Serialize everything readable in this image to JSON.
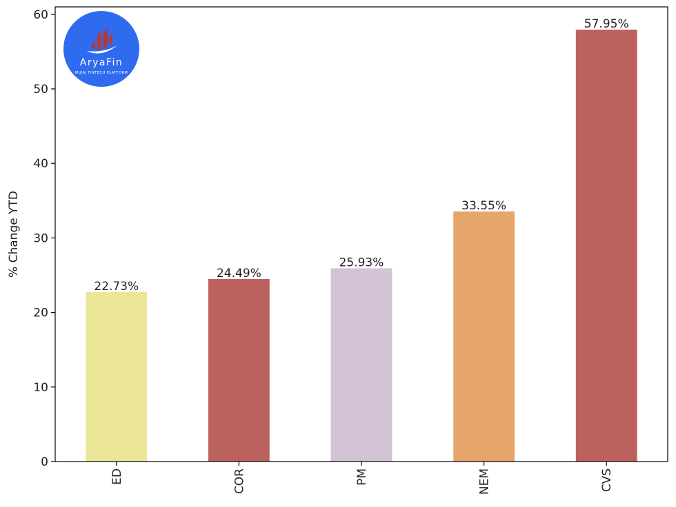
{
  "chart_data": {
    "type": "bar",
    "title": "",
    "xlabel": "",
    "ylabel": "% Change YTD",
    "categories": [
      "ED",
      "COR",
      "PM",
      "NEM",
      "CVS"
    ],
    "values": [
      22.73,
      24.49,
      25.93,
      33.55,
      57.95
    ],
    "data_labels": [
      "22.73%",
      "24.49%",
      "25.93%",
      "33.55%",
      "57.95%"
    ],
    "colors": [
      "#ebe597",
      "#bc625e",
      "#d4c2d7",
      "#e6a66b",
      "#bc625e"
    ],
    "ylim": [
      0,
      61
    ],
    "yticks": [
      0,
      10,
      20,
      30,
      40,
      50,
      60
    ],
    "grid": false,
    "legend": "none",
    "xtick_rotation": "vertical"
  },
  "logo": {
    "name": "AryaFin",
    "tagline": "MUJAJ FINTECH PLATFORM",
    "color": "#2f6bef"
  }
}
